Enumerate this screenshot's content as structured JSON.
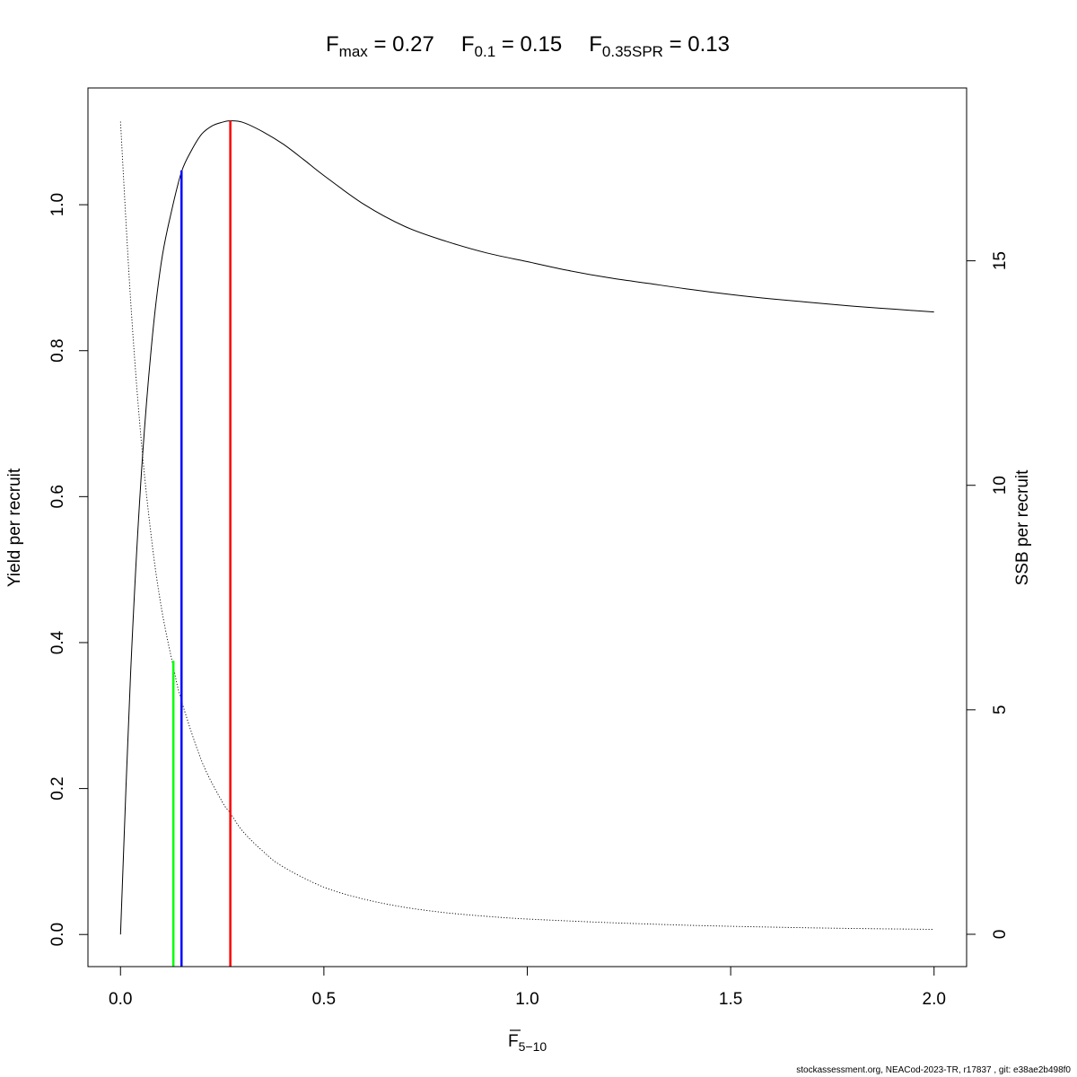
{
  "title": {
    "parts": [
      {
        "main": "F",
        "sub": "max",
        "eq": " = 0.27"
      },
      {
        "main": "F",
        "sub": "0.1",
        "eq": " = 0.15"
      },
      {
        "main": "F",
        "sub": "0.35SPR",
        "eq": " = 0.13"
      }
    ]
  },
  "footer": "stockassessment.org, NEACod-2023-TR, r17837 , git: e38ae2b498f0",
  "chart_data": {
    "type": "line",
    "xlabel": {
      "main": "F",
      "sub": "5−10"
    },
    "ylabel_left": "Yield per recruit",
    "ylabel_right": "SSB per recruit",
    "xlim": [
      -0.08,
      2.08
    ],
    "ylim_left": [
      -0.044,
      1.16
    ],
    "ylim_right": [
      -0.72,
      18.85
    ],
    "x_ticks": [
      0.0,
      0.5,
      1.0,
      1.5,
      2.0
    ],
    "x_tick_labels": [
      "0.0",
      "0.5",
      "1.0",
      "1.5",
      "2.0"
    ],
    "y_left_ticks": [
      0.0,
      0.2,
      0.4,
      0.6,
      0.8,
      1.0
    ],
    "y_left_tick_labels": [
      "0.0",
      "0.2",
      "0.4",
      "0.6",
      "0.8",
      "1.0"
    ],
    "y_right_ticks": [
      0,
      5,
      10,
      15
    ],
    "y_right_tick_labels": [
      "0",
      "5",
      "10",
      "15"
    ],
    "grid": false,
    "series": [
      {
        "axis": "left",
        "style": "solid",
        "color": "#000000",
        "x": [
          0.0,
          0.025,
          0.05,
          0.075,
          0.1,
          0.125,
          0.15,
          0.175,
          0.2,
          0.225,
          0.25,
          0.27,
          0.3,
          0.35,
          0.4,
          0.45,
          0.5,
          0.6,
          0.7,
          0.8,
          0.9,
          1.0,
          1.1,
          1.2,
          1.3,
          1.4,
          1.5,
          1.6,
          1.7,
          1.8,
          1.9,
          2.0
        ],
        "y": [
          0.0,
          0.36,
          0.62,
          0.8,
          0.92,
          0.99,
          1.045,
          1.075,
          1.097,
          1.108,
          1.113,
          1.115,
          1.113,
          1.1,
          1.083,
          1.062,
          1.04,
          1.0,
          0.97,
          0.95,
          0.934,
          0.922,
          0.91,
          0.9,
          0.892,
          0.884,
          0.877,
          0.871,
          0.866,
          0.861,
          0.857,
          0.853
        ]
      },
      {
        "axis": "right",
        "style": "dotted",
        "color": "#000000",
        "x": [
          0.0,
          0.025,
          0.05,
          0.075,
          0.1,
          0.13,
          0.15,
          0.2,
          0.25,
          0.27,
          0.3,
          0.35,
          0.4,
          0.5,
          0.6,
          0.7,
          0.8,
          0.9,
          1.0,
          1.2,
          1.4,
          1.6,
          1.8,
          2.0
        ],
        "y": [
          18.1,
          14.1,
          11.1,
          8.9,
          7.3,
          5.95,
          5.2,
          3.85,
          2.95,
          2.7,
          2.3,
          1.85,
          1.5,
          1.05,
          0.78,
          0.6,
          0.48,
          0.4,
          0.34,
          0.26,
          0.2,
          0.16,
          0.13,
          0.11
        ]
      }
    ],
    "reference_lines": [
      {
        "label": "F0.35SPR",
        "x": 0.13,
        "y_top": 0.375,
        "color": "#00ff00"
      },
      {
        "label": "F0.1",
        "x": 0.15,
        "y_top": 1.047,
        "color": "#0000ff"
      },
      {
        "label": "Fmax",
        "x": 0.27,
        "y_top": 1.115,
        "color": "#ff0000"
      }
    ]
  }
}
